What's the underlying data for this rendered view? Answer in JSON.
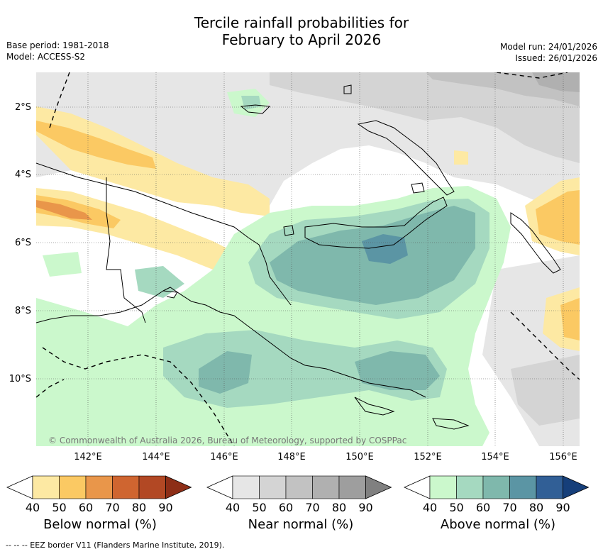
{
  "title": {
    "line1": "Tercile rainfall probabilities for",
    "line2": "February to April 2026"
  },
  "meta_left": {
    "base_period": "Base period: 1981-2018",
    "model": "Model: ACCESS-S2"
  },
  "meta_right": {
    "model_run": "Model run: 24/01/2026",
    "issued": "Issued: 26/01/2026"
  },
  "map": {
    "lat_labels": [
      "2°S",
      "4°S",
      "6°S",
      "8°S",
      "10°S"
    ],
    "lon_labels": [
      "142°E",
      "144°E",
      "146°E",
      "148°E",
      "150°E",
      "152°E",
      "154°E",
      "156°E"
    ],
    "copyright": "© Commonwealth of Australia 2026, Bureau of Meteorology, supported by COSPPac"
  },
  "colorbars": [
    {
      "name": "below",
      "label": "Below normal (%)",
      "ticks": [
        "40",
        "50",
        "60",
        "70",
        "80",
        "90"
      ],
      "colors": [
        "#fde9a3",
        "#fbc963",
        "#e9964a",
        "#cf6530",
        "#b24824",
        "#8d2e17"
      ]
    },
    {
      "name": "near",
      "label": "Near normal (%)",
      "ticks": [
        "40",
        "50",
        "60",
        "70",
        "80",
        "90"
      ],
      "colors": [
        "#e6e6e6",
        "#d4d4d4",
        "#c2c2c2",
        "#b0b0b0",
        "#9e9e9e",
        "#808080"
      ]
    },
    {
      "name": "above",
      "label": "Above normal (%)",
      "ticks": [
        "40",
        "50",
        "60",
        "70",
        "80",
        "90"
      ],
      "colors": [
        "#cbf8cc",
        "#a5d9c0",
        "#7fb8ac",
        "#5b95a4",
        "#315f96",
        "#163f7a"
      ]
    }
  ],
  "footer": "-- -- -- EEZ border V11 (Flanders Marine Institute, 2019)."
}
